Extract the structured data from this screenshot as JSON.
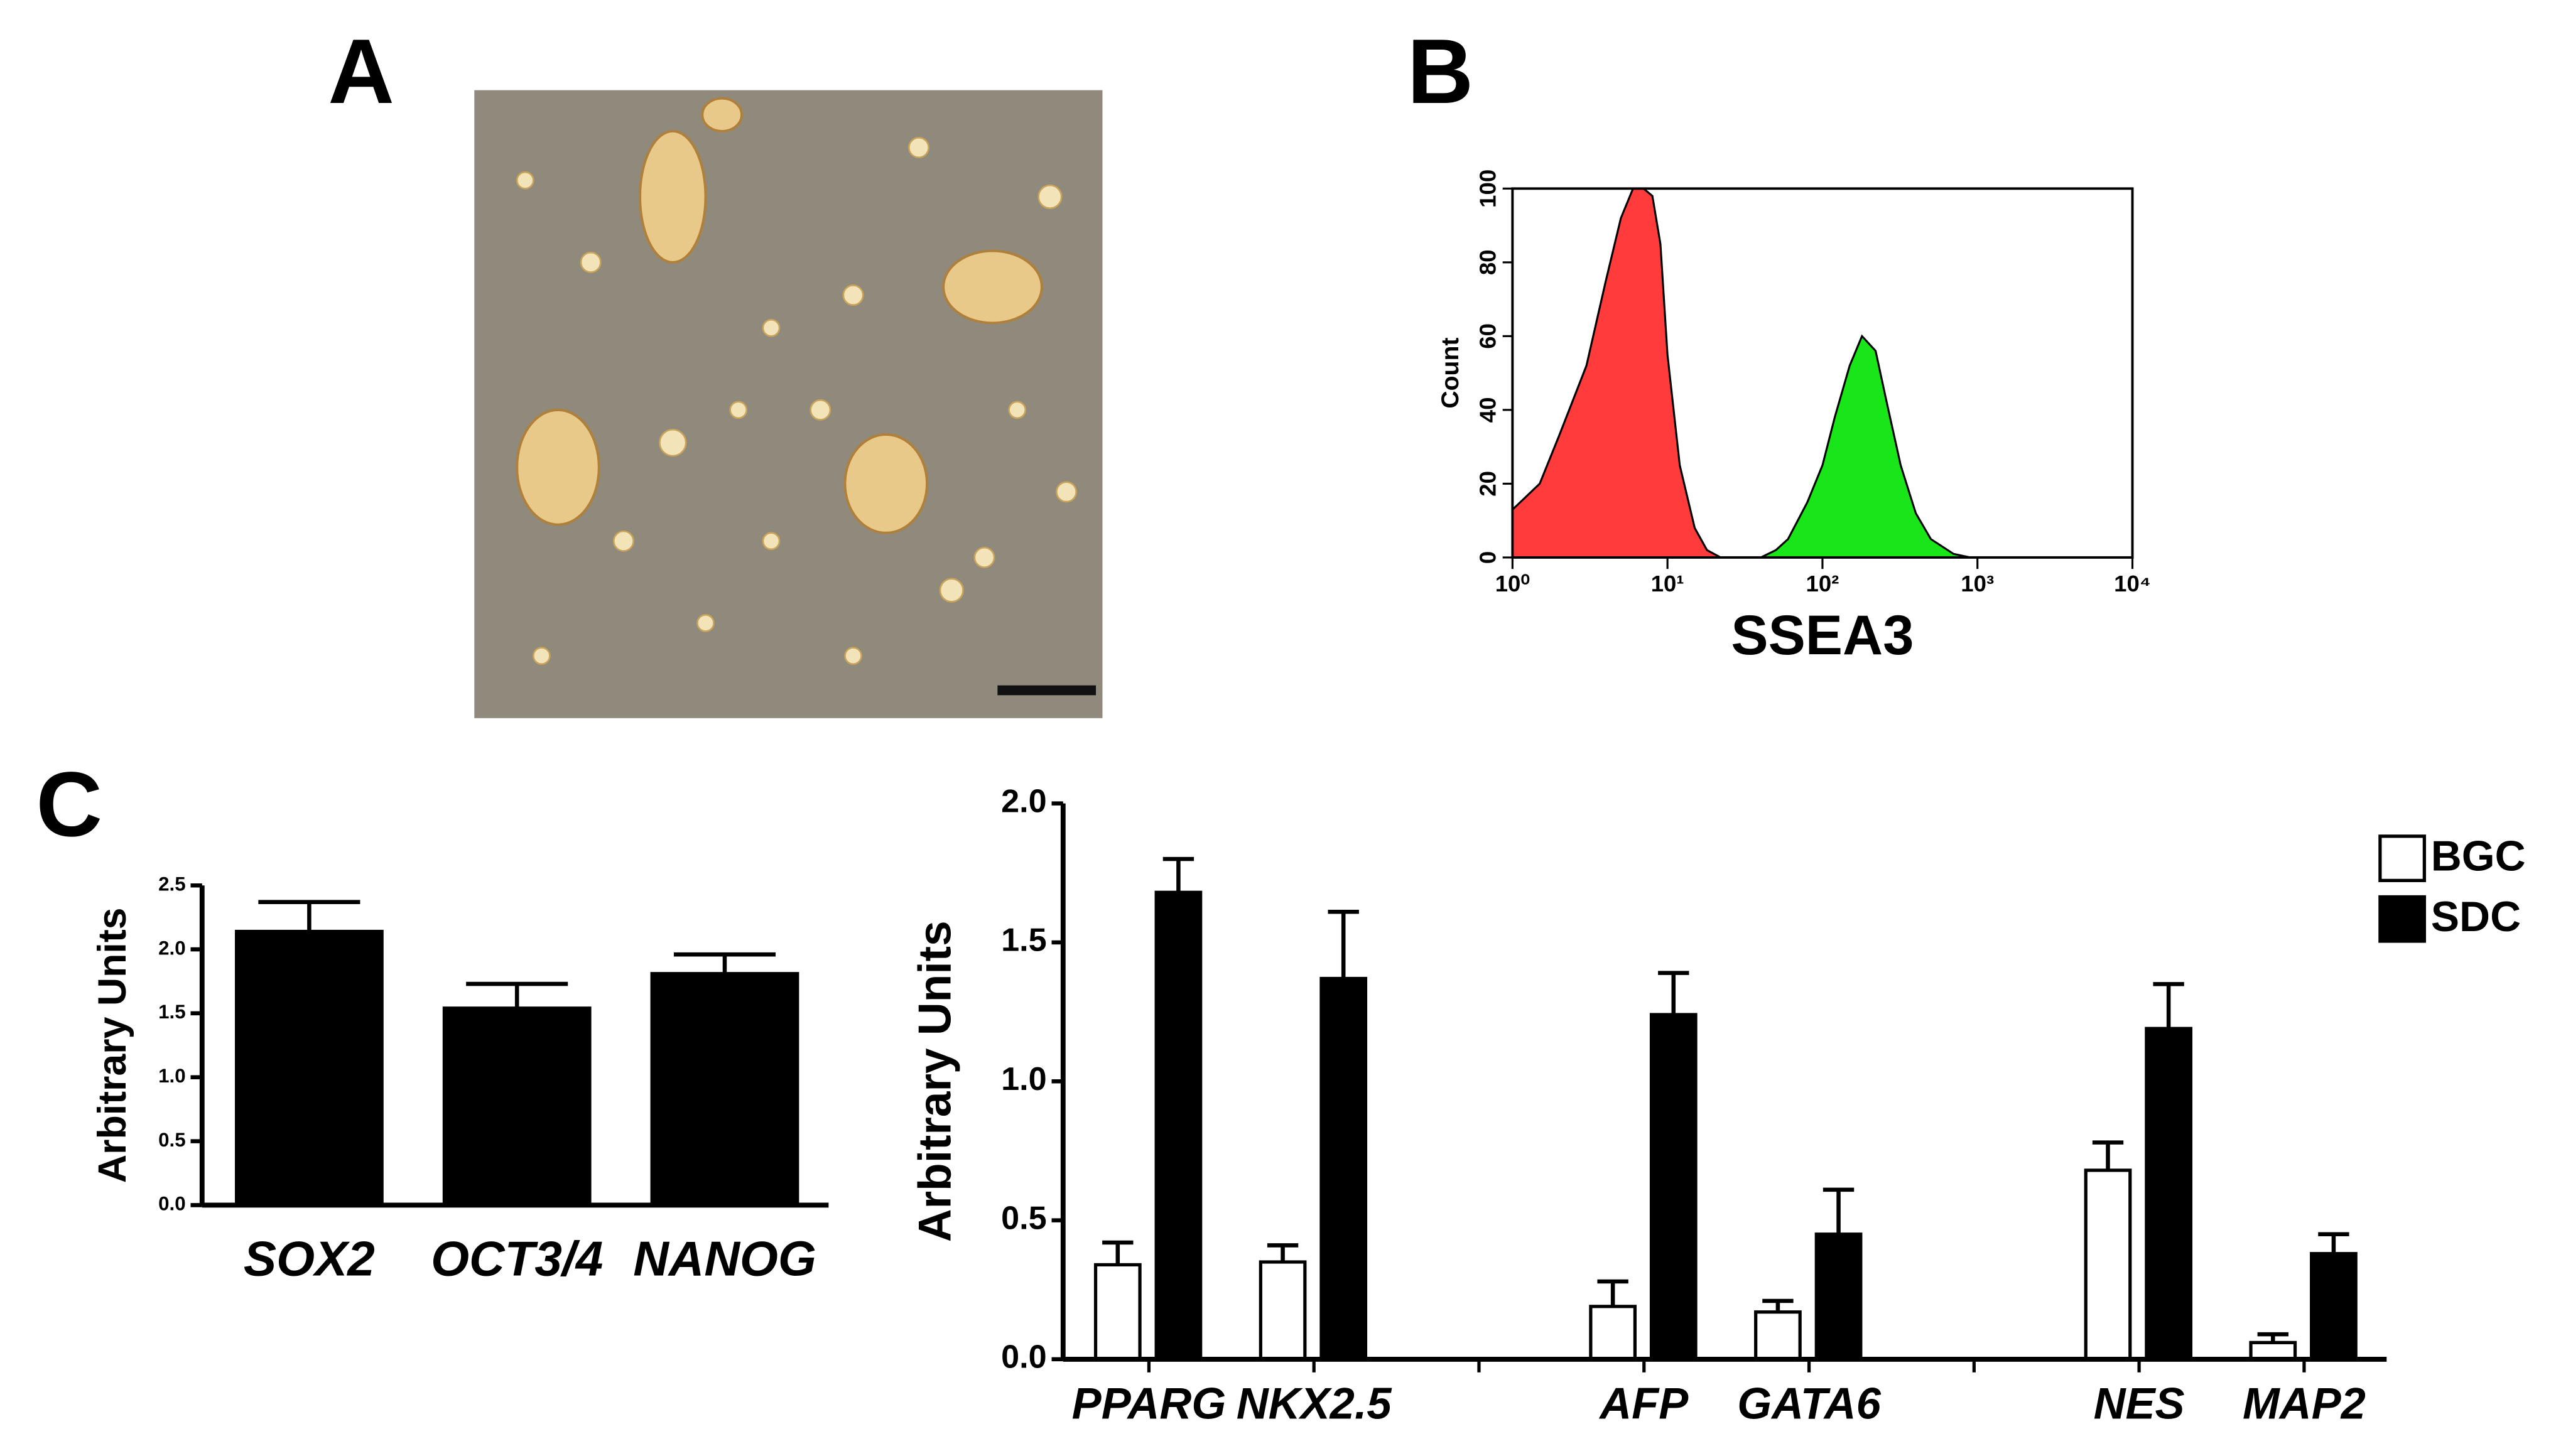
{
  "panel_labels": [
    "A",
    "B",
    "C"
  ],
  "chart_data": [
    {
      "type": "area",
      "xlabel": "SSEA3",
      "ylabel": "Count",
      "xscale": "log",
      "xlim": [
        1,
        10000
      ],
      "xticks": [
        {
          "value": 1,
          "label": "10⁰"
        },
        {
          "value": 10,
          "label": "10¹"
        },
        {
          "value": 100,
          "label": "10²"
        },
        {
          "value": 1000,
          "label": "10³"
        },
        {
          "value": 10000,
          "label": "10⁴"
        }
      ],
      "ylim": [
        0,
        100
      ],
      "yticks": [
        0,
        20,
        40,
        60,
        80,
        100
      ],
      "series": [
        {
          "color": "#ff3b3b",
          "x": [
            1,
            1.5,
            2,
            3,
            4,
            5,
            6,
            7,
            8,
            9,
            10,
            12,
            15,
            18,
            22
          ],
          "values": [
            13,
            20,
            33,
            52,
            75,
            92,
            100,
            100,
            98,
            85,
            55,
            25,
            8,
            2,
            0
          ]
        },
        {
          "color": "#19e619",
          "x": [
            40,
            50,
            60,
            80,
            100,
            120,
            150,
            180,
            220,
            260,
            320,
            400,
            500,
            700,
            900
          ],
          "values": [
            0,
            2,
            5,
            15,
            25,
            38,
            52,
            60,
            56,
            42,
            25,
            12,
            5,
            1,
            0
          ]
        }
      ]
    },
    {
      "type": "bar",
      "ylabel": "Arbitrary Units",
      "categories": [
        "SOX2",
        "OCT3/4",
        "NANOG"
      ],
      "values": [
        2.14,
        1.54,
        1.81
      ],
      "errors": [
        0.23,
        0.19,
        0.15
      ],
      "color": "#000000",
      "ylim": [
        0,
        2.5
      ],
      "yticks": [
        {
          "value": 0,
          "label": "0.0"
        },
        0.5,
        {
          "value": 1,
          "label": "1.0"
        },
        1.5,
        {
          "value": 2,
          "label": "2.0"
        },
        2.5
      ]
    },
    {
      "type": "bar",
      "ylabel": "Arbitrary Units",
      "categories": [
        "PPARG",
        "NKX2.5",
        null,
        "AFP",
        "GATA6",
        null,
        "NES",
        "MAP2"
      ],
      "series": [
        {
          "name": "BGC",
          "color": "#ffffff",
          "values": [
            0.34,
            0.35,
            null,
            0.19,
            0.17,
            null,
            0.68,
            0.06
          ],
          "errors": [
            0.08,
            0.06,
            null,
            0.09,
            0.04,
            null,
            0.1,
            0.03
          ]
        },
        {
          "name": "SDC",
          "color": "#000000",
          "values": [
            1.68,
            1.37,
            null,
            1.24,
            0.45,
            null,
            1.19,
            0.38
          ],
          "errors": [
            0.12,
            0.24,
            null,
            0.15,
            0.16,
            null,
            0.16,
            0.07
          ]
        }
      ],
      "ylim": [
        0,
        2
      ],
      "yticks": [
        {
          "value": 0,
          "label": "0.0"
        },
        0.5,
        {
          "value": 1,
          "label": "1.0"
        },
        1.5,
        {
          "value": 2,
          "label": "2.0"
        }
      ],
      "legend": "top-right"
    }
  ]
}
